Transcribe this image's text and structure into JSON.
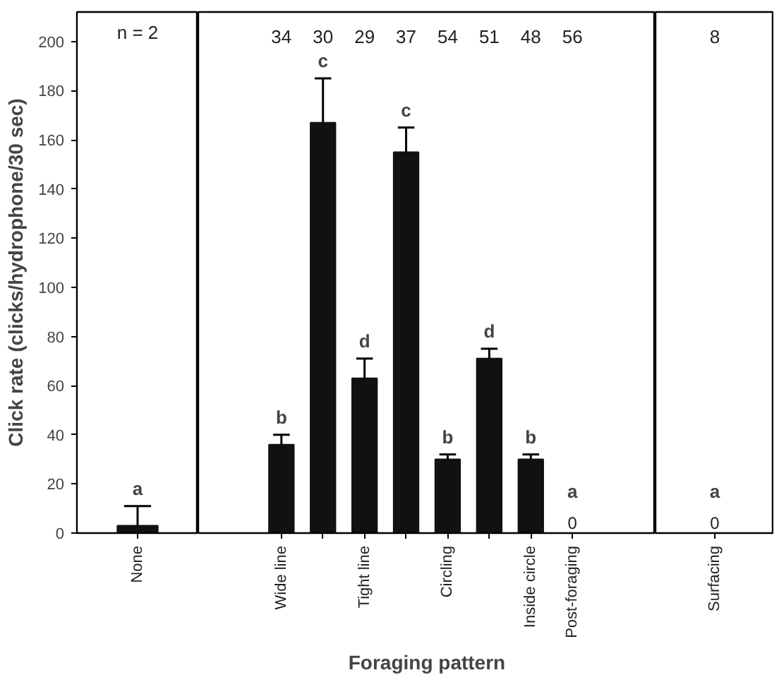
{
  "chart_data": [
    {
      "type": "bar",
      "ylabel": "Click rate (clicks/hydrophone/30 sec)",
      "categories": [
        "None"
      ],
      "values": [
        3
      ],
      "errors": [
        8
      ],
      "color": "#111111",
      "ylim": [
        0,
        212
      ],
      "yticks": [
        0,
        20,
        40,
        60,
        80,
        100,
        120,
        140,
        160,
        180,
        200
      ],
      "annotations": [
        "n = 2",
        "a"
      ],
      "grid": false
    },
    {
      "type": "bar",
      "xlabel": "Foraging pattern",
      "categories": [
        "Wide line",
        null,
        "Tight line",
        null,
        "Circling",
        null,
        "Inside circle",
        "Post-foraging"
      ],
      "values": [
        36,
        167,
        63,
        155,
        30,
        71,
        30,
        0
      ],
      "errors": [
        4,
        18,
        8,
        10,
        2,
        4,
        2,
        null
      ],
      "value_labels": [
        null,
        null,
        null,
        null,
        null,
        null,
        null,
        "0"
      ],
      "color": "#111111",
      "ylim": [
        0,
        212
      ],
      "tick_labels": "x",
      "annotations": [
        "34",
        "30",
        "29",
        "37",
        "54",
        "51",
        "48",
        "56",
        "b",
        "c",
        "d",
        "c",
        "b",
        "d",
        "b",
        "a"
      ],
      "grid": false
    },
    {
      "type": "bar",
      "categories": [
        "Surfacing"
      ],
      "values": [
        0
      ],
      "errors": [
        null
      ],
      "value_labels": [
        "0"
      ],
      "color": "#111111",
      "ylim": [
        0,
        212
      ],
      "tick_labels": "x",
      "annotations": [
        "8",
        "a"
      ],
      "grid": false
    }
  ]
}
